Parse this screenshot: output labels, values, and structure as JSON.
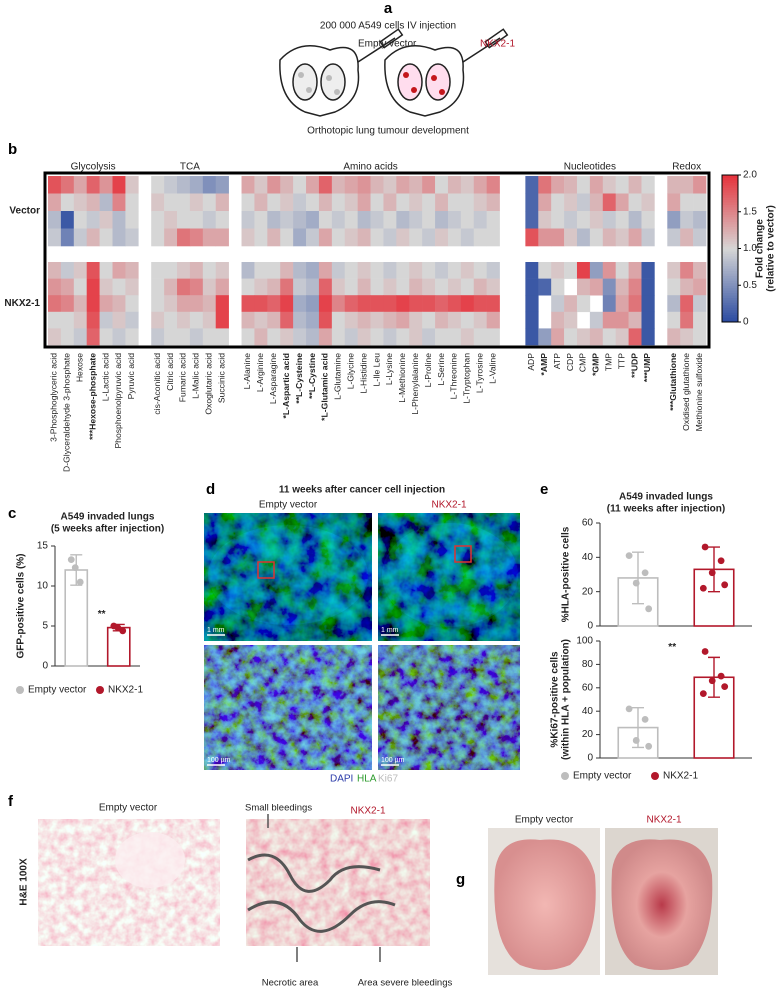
{
  "panel_a": {
    "letter": "a",
    "title": "200 000 A549 cells IV injection",
    "left_label": "Empty vector",
    "right_label": "NKX2-1",
    "caption": "Orthotopic lung tumour development"
  },
  "chart_data": [
    {
      "type": "heatmap",
      "letter": "b",
      "column_groups": [
        {
          "name": "Glycolysis",
          "categories": [
            "3-Phosphoglyceric acid",
            "D-Glyceraldehyde 3-phosphate",
            "Hexose",
            "***Hexose-phosphate",
            "L-Lactic acid",
            "Phosphoenolpyruvic acid",
            "Pyruvic acid"
          ]
        },
        {
          "name": "TCA",
          "categories": [
            "cis-Aconitic acid",
            "Citric acid",
            "Fumaric acid",
            "L-Malic acid",
            "Oxoglutaric acid",
            "Succinic acid"
          ]
        },
        {
          "name": "Amino acids",
          "categories": [
            "L-Alanine",
            "L-Arginine",
            "L-Asparagine",
            "*L-Aspartic acid",
            "**L-Cysteine",
            "**L-Cystine",
            "*L-Glutamic acid",
            "L-Glutamine",
            "L-Glycine",
            "L-Histidine",
            "L-Ile Leu",
            "L-Lysine",
            "L-Methionine",
            "L-Phenylalanine",
            "L-Proline",
            "L-Serine",
            "L-Threonine",
            "L-Tryptophan",
            "L-Tyrosine",
            "L-Valine"
          ]
        },
        {
          "name": "Nucleotides",
          "categories": [
            "ADP",
            "*AMP",
            "ATP",
            "CDP",
            "CMP",
            "*GMP",
            "TMP",
            "TTP",
            "**UDP",
            "***UMP"
          ]
        },
        {
          "name": "Redox",
          "categories": [
            "***Glutathione",
            "Oxidised glutathione",
            "Methionine sulfoxide"
          ]
        }
      ],
      "row_groups": [
        {
          "name": "Vector",
          "rows": [
            [
              1.8,
              1.6,
              1.3,
              1.7,
              1.4,
              1.9,
              1.1,
              1.0,
              0.9,
              0.8,
              0.7,
              0.5,
              0.6,
              1.3,
              1.1,
              1.4,
              1.2,
              1.0,
              1.3,
              1.7,
              1.2,
              1.3,
              1.4,
              1.2,
              1.1,
              1.3,
              1.2,
              1.4,
              1.0,
              1.2,
              1.1,
              1.3,
              1.5,
              0.2,
              1.6,
              1.3,
              1.2,
              1.0,
              1.3,
              1.1,
              1.0,
              1.2,
              1.0,
              1.2,
              1.2,
              1.4
            ],
            [
              1.3,
              1.0,
              1.1,
              1.2,
              0.8,
              1.5,
              1.0,
              1.1,
              1.0,
              1.0,
              1.1,
              1.0,
              1.2,
              1.0,
              1.2,
              1.0,
              1.1,
              0.9,
              1.0,
              1.2,
              1.0,
              1.1,
              1.3,
              1.0,
              1.2,
              1.0,
              1.1,
              1.0,
              1.2,
              1.0,
              1.0,
              1.1,
              1.2,
              0.2,
              1.3,
              1.0,
              1.1,
              0.9,
              1.2,
              1.7,
              1.3,
              1.0,
              1.1,
              1.3,
              1.0,
              1.0
            ],
            [
              0.8,
              0.1,
              1.0,
              0.9,
              1.1,
              0.8,
              1.0,
              1.0,
              1.1,
              1.0,
              1.0,
              0.9,
              1.0,
              0.9,
              1.0,
              0.8,
              0.9,
              0.8,
              0.7,
              1.0,
              0.9,
              1.0,
              0.8,
              0.9,
              1.0,
              0.8,
              0.9,
              1.0,
              0.8,
              0.9,
              1.0,
              0.9,
              1.0,
              0.2,
              1.1,
              1.0,
              0.9,
              1.0,
              1.1,
              0.9,
              1.0,
              0.8,
              1.0,
              0.6,
              0.9,
              0.8
            ],
            [
              0.9,
              0.4,
              0.9,
              1.2,
              1.0,
              0.8,
              0.9,
              1.0,
              1.2,
              1.6,
              1.5,
              1.3,
              1.3,
              1.1,
              1.0,
              1.2,
              1.0,
              0.7,
              0.9,
              1.3,
              1.0,
              1.1,
              1.2,
              1.0,
              0.9,
              1.1,
              1.0,
              0.9,
              1.1,
              1.0,
              0.9,
              1.0,
              1.0,
              1.8,
              1.4,
              1.4,
              1.1,
              0.8,
              1.0,
              1.2,
              1.1,
              1.3,
              0.9,
              0.9,
              1.2,
              0.9
            ]
          ]
        },
        {
          "name": "NKX2-1",
          "rows": [
            [
              1.2,
              0.9,
              1.1,
              1.8,
              1.0,
              1.3,
              1.2,
              1.0,
              1.0,
              1.1,
              1.2,
              1.0,
              1.1,
              0.8,
              1.0,
              1.0,
              1.2,
              0.8,
              0.7,
              1.3,
              0.9,
              1.0,
              1.1,
              1.0,
              0.9,
              1.0,
              1.1,
              1.0,
              0.9,
              1.0,
              1.1,
              1.0,
              0.9,
              0.1,
              1.0,
              1.1,
              1.0,
              1.9,
              0.6,
              1.4,
              1.0,
              1.3,
              0.1,
              1.1,
              1.5,
              1.2
            ],
            [
              1.4,
              1.3,
              1.0,
              1.9,
              1.1,
              1.0,
              1.1,
              1.0,
              1.2,
              1.6,
              1.5,
              1.1,
              1.3,
              1.0,
              1.1,
              1.2,
              1.6,
              0.9,
              0.8,
              1.7,
              1.1,
              1.0,
              1.2,
              1.0,
              1.1,
              1.0,
              1.2,
              1.1,
              1.0,
              1.1,
              1.0,
              1.2,
              1.1,
              0.1,
              0.2,
              1.0,
              null,
              1.2,
              1.3,
              0.5,
              1.2,
              1.5,
              0.1,
              1.0,
              1.2,
              1.3
            ],
            [
              1.6,
              1.5,
              1.2,
              1.9,
              1.3,
              1.2,
              1.0,
              1.0,
              1.1,
              1.3,
              1.3,
              1.2,
              1.9,
              1.8,
              1.8,
              1.7,
              1.9,
              0.7,
              0.6,
              1.9,
              1.5,
              1.7,
              1.8,
              1.8,
              1.8,
              1.9,
              1.8,
              1.8,
              1.7,
              1.8,
              1.9,
              1.8,
              1.8,
              0.1,
              null,
              0.9,
              1.2,
              1.0,
              null,
              0.4,
              1.3,
              1.6,
              0.1,
              0.8,
              1.7,
              0.9
            ],
            [
              1.0,
              1.0,
              1.1,
              1.8,
              0.9,
              1.1,
              0.9,
              1.1,
              1.0,
              1.1,
              1.0,
              1.1,
              1.9,
              1.2,
              1.1,
              1.2,
              1.7,
              0.8,
              0.7,
              1.8,
              1.0,
              1.1,
              1.2,
              1.1,
              1.2,
              1.3,
              1.1,
              1.0,
              1.2,
              1.1,
              1.0,
              1.1,
              1.3,
              0.1,
              null,
              1.2,
              1.1,
              null,
              0.9,
              1.4,
              1.4,
              1.2,
              0.1,
              1.0,
              1.6,
              1.0
            ],
            [
              1.1,
              1.0,
              0.9,
              1.7,
              1.0,
              0.9,
              1.0,
              0.9,
              1.0,
              1.0,
              0.9,
              1.0,
              1.0,
              1.0,
              1.2,
              1.0,
              1.1,
              0.9,
              0.8,
              1.3,
              1.0,
              0.9,
              1.1,
              1.0,
              0.9,
              1.0,
              1.1,
              0.9,
              1.0,
              1.0,
              1.1,
              1.0,
              1.0,
              0.1,
              0.6,
              1.3,
              1.0,
              1.1,
              1.2,
              1.0,
              1.1,
              1.7,
              0.1,
              1.2,
              1.1,
              1.0
            ]
          ]
        }
      ],
      "clim": [
        0,
        2
      ],
      "cticks": [
        0,
        0.5,
        {
          "value": 1,
          "label": "1.0"
        },
        1.5,
        {
          "value": 2,
          "label": "2.0"
        }
      ],
      "colorbar_label": [
        "Fold change",
        "(relative to vector)"
      ],
      "colors": {
        "low": "#2a4aa0",
        "mid": "#d6d6d6",
        "high": "#e5323b"
      }
    },
    {
      "type": "bar",
      "letter": "c",
      "title": [
        "A549 invaded lungs",
        "(5 weeks after injection)"
      ],
      "ylabel": [
        "GFP-positive cells (%)"
      ],
      "categories": [
        "Empty vector",
        "NKX2-1"
      ],
      "values": [
        12,
        4.8
      ],
      "errors": [
        1.9,
        0.4
      ],
      "points": [
        [
          13.3,
          10.5,
          12.3
        ],
        [
          5,
          4.4,
          4.8
        ]
      ],
      "colors": [
        "#bdbdbd",
        "#b2182b"
      ],
      "ylim": [
        0,
        15
      ],
      "yticks": [
        0,
        5,
        10,
        15
      ],
      "annotation": "**",
      "legend": true
    },
    {
      "type": "bar",
      "letter": "e",
      "title": [
        "A549 invaded lungs",
        "(11 weeks after injection)"
      ],
      "ylabel": [
        "%HLA-positive cells"
      ],
      "categories": [
        "Empty vector",
        "NKX2-1"
      ],
      "values": [
        28,
        33
      ],
      "errors": [
        15,
        13
      ],
      "points": [
        [
          41,
          31,
          25,
          10
        ],
        [
          46,
          38,
          31,
          24,
          22
        ]
      ],
      "colors": [
        "#bdbdbd",
        "#b2182b"
      ],
      "ylim": [
        0,
        60
      ],
      "yticks": [
        0,
        20,
        40,
        60
      ],
      "legend": false
    },
    {
      "type": "bar",
      "ylabel": [
        "%Ki67-positive cells",
        "(within HLA + population)"
      ],
      "categories": [
        "Empty vector",
        "NKX2-1"
      ],
      "values": [
        26,
        69
      ],
      "errors": [
        17,
        17
      ],
      "points": [
        [
          42,
          33,
          15,
          10
        ],
        [
          91,
          70,
          66,
          61,
          55
        ]
      ],
      "colors": [
        "#bdbdbd",
        "#b2182b"
      ],
      "ylim": [
        0,
        100
      ],
      "yticks": [
        0,
        20,
        40,
        60,
        80,
        100
      ],
      "annotation": "**",
      "legend": true
    }
  ],
  "panel_d": {
    "letter": "d",
    "title": "11 weeks after cancer cell injection",
    "left_label": "Empty vector",
    "right_label": "NKX2-1",
    "scale_bars": [
      "1 mm",
      "1 mm",
      "100 µm",
      "100 µm"
    ],
    "stain_legend": [
      "DAPI",
      "HLA",
      "Ki67"
    ]
  },
  "panel_f": {
    "letter": "f",
    "left_label": "Empty vector",
    "right_label": "NKX2-1",
    "side_label": "H&E 100X",
    "annotations": [
      "Small bleedings",
      "Necrotic area",
      "Area severe bleedings"
    ]
  },
  "panel_g": {
    "letter": "g",
    "left_label": "Empty vector",
    "right_label": "NKX2-1"
  }
}
